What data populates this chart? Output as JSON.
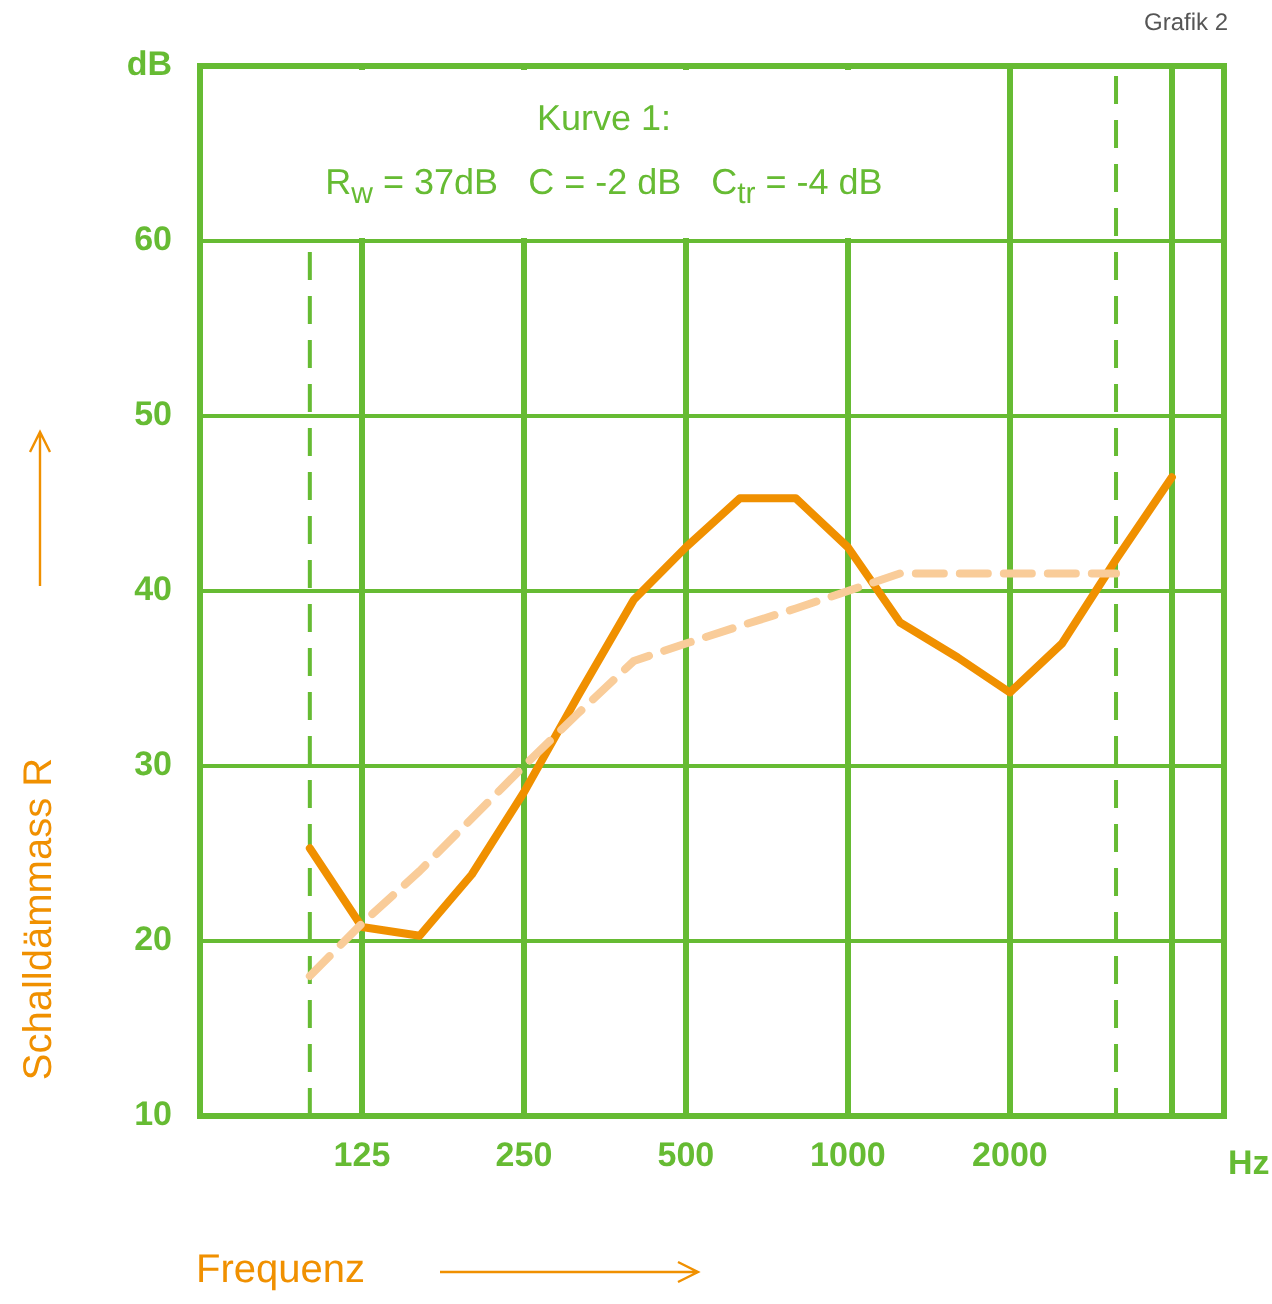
{
  "chart_data": {
    "type": "line",
    "title": "Kurve 1:",
    "subtitle": "R$_{w}$ = 37dB   C = -2 dB   C$_{tr}$ = -4 dB",
    "xlabel": "Frequenz",
    "ylabel": "Schalldämmass R",
    "annotations": [
      "Grafik 2",
      "Hz"
    ],
    "log": "x",
    "xlim": [
      62.5,
      5000
    ],
    "xticks": [
      125,
      250,
      500,
      1000,
      2000,
      {
        "value": 4000,
        "label": null
      }
    ],
    "ylim": [
      10,
      70
    ],
    "yticks": [
      10,
      20,
      30,
      40,
      50,
      60,
      {
        "value": 70,
        "label": "dB"
      }
    ],
    "grid": true,
    "legend": false,
    "marker": "none",
    "ref_lines": [
      {
        "axis": "x",
        "value": 100,
        "label": null,
        "color": "#66bb33",
        "line_style": "dashed"
      },
      {
        "axis": "x",
        "value": 3150,
        "label": null,
        "color": "#66bb33",
        "line_style": "dashed"
      }
    ],
    "series": [
      {
        "color": "#f09000",
        "line_style": "solid",
        "x": [
          100,
          125,
          160,
          200,
          250,
          315,
          400,
          500,
          630,
          800,
          1000,
          1250,
          1600,
          2000,
          2500,
          3150,
          4000
        ],
        "values": [
          25.3,
          20.8,
          20.3,
          23.8,
          28.5,
          34,
          39.5,
          42.5,
          45.3,
          45.3,
          42.5,
          38.2,
          36.2,
          34.2,
          37,
          41.8,
          46.5
        ]
      },
      {
        "color": "#f9cc99",
        "line_style": "dashed",
        "x": [
          100,
          125,
          160,
          200,
          250,
          315,
          400,
          500,
          630,
          800,
          1000,
          1250,
          1600,
          2000,
          2500,
          3150
        ],
        "values": [
          18,
          21,
          24,
          27,
          30,
          33,
          36,
          37,
          38,
          39,
          40,
          41,
          41,
          41,
          41,
          41
        ]
      }
    ]
  }
}
